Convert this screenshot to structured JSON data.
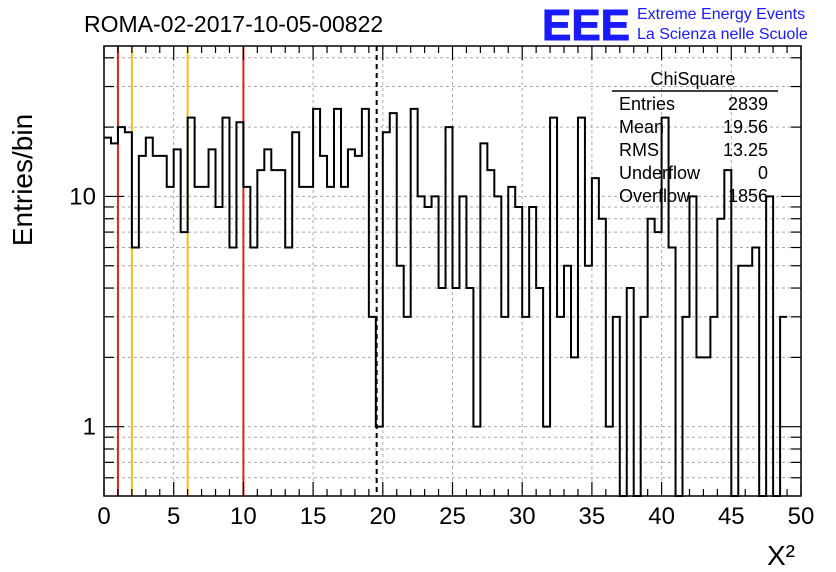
{
  "chart_data": {
    "type": "bar",
    "title": "ROMA-02-2017-10-05-00822",
    "xlabel": "X²",
    "ylabel": "Entries/bin",
    "x_range": [
      0,
      50
    ],
    "y_range": [
      0.5,
      45
    ],
    "y_scale": "log",
    "grid": true,
    "bin_width": 0.5,
    "x_ticks": [
      "0",
      "5",
      "10",
      "15",
      "20",
      "25",
      "30",
      "35",
      "40",
      "45",
      "50"
    ],
    "y_ticks": [
      {
        "value": 1,
        "label": "1"
      },
      {
        "value": 10,
        "label": "10"
      }
    ],
    "bin_values": [
      18,
      17,
      20,
      19,
      6,
      15,
      18,
      15,
      15,
      11,
      16,
      7,
      22,
      11,
      11,
      16,
      9,
      22,
      6,
      21,
      11,
      6,
      13,
      16,
      13,
      13,
      6,
      19,
      11,
      11,
      24,
      15,
      11,
      24,
      11,
      16,
      15,
      24,
      3,
      1,
      19,
      23,
      5,
      3,
      24,
      10,
      9,
      10,
      4,
      20,
      4,
      10,
      4,
      1,
      17,
      13,
      10,
      3,
      11,
      9,
      3,
      9,
      4,
      1,
      22,
      3,
      5,
      2,
      22,
      5,
      12,
      8,
      1,
      3,
      0.4,
      4,
      0.4,
      3,
      8,
      7,
      22,
      6,
      0.4,
      3,
      10,
      2,
      2,
      3,
      8,
      13,
      0.4,
      5,
      5,
      6,
      0.4,
      10,
      0.4,
      3
    ],
    "vertical_lines": [
      {
        "x": 1.0,
        "color": "#dd2222",
        "style": "solid"
      },
      {
        "x": 2.0,
        "color": "#f0c020",
        "style": "solid"
      },
      {
        "x": 6.0,
        "color": "#f0c020",
        "style": "solid"
      },
      {
        "x": 10.0,
        "color": "#dd2222",
        "style": "solid"
      },
      {
        "x": 19.56,
        "color": "#000000",
        "style": "dashed"
      }
    ]
  },
  "stats": {
    "title": "ChiSquare",
    "rows": [
      {
        "label": "Entries",
        "value": "2839"
      },
      {
        "label": "Mean",
        "value": "19.56"
      },
      {
        "label": "RMS",
        "value": "13.25"
      },
      {
        "label": "Underflow",
        "value": "0"
      },
      {
        "label": "Overflow",
        "value": "1856"
      }
    ]
  },
  "logo": {
    "mark": "EEE",
    "line1": "Extreme Energy Events",
    "line2": "La Scienza nelle Scuole",
    "color": "#1a1aff"
  }
}
